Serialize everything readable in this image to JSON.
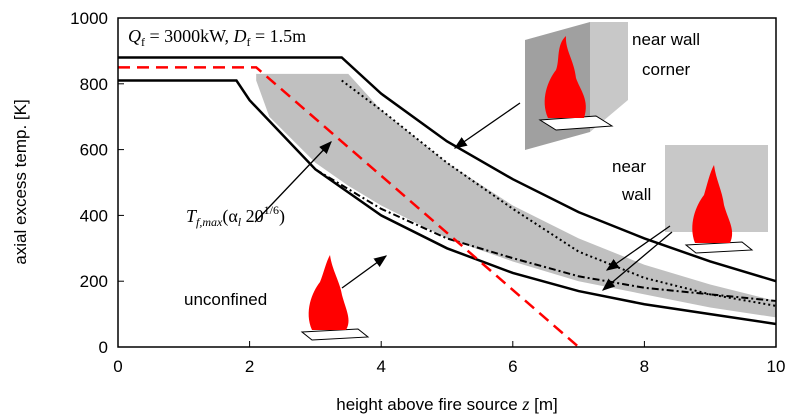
{
  "chart_data": {
    "type": "line",
    "x_label_parts": [
      "height above fire source ",
      "z",
      " [m]"
    ],
    "y_label": "axial excess temp. [K]",
    "xlim": [
      0,
      10
    ],
    "xticks": [
      0,
      2,
      4,
      6,
      8,
      10
    ],
    "ylim": [
      0,
      1000
    ],
    "yticks": [
      0,
      200,
      400,
      600,
      800,
      1000
    ],
    "band": {
      "color": "#c0c0c0",
      "x": [
        2.1,
        2.3,
        3,
        3.5,
        4,
        5,
        6,
        7,
        8,
        9,
        10
      ],
      "upper": [
        830,
        830,
        830,
        830,
        720,
        560,
        430,
        330,
        250,
        190,
        140
      ],
      "lower": [
        810,
        700,
        560,
        490,
        430,
        330,
        260,
        200,
        160,
        120,
        90
      ]
    },
    "series": [
      {
        "color": "#000000",
        "dash": "solid",
        "width": 2.5,
        "x": [
          0,
          3.4,
          4,
          5,
          6,
          7,
          8,
          9,
          10
        ],
        "values": [
          880,
          880,
          770,
          625,
          510,
          410,
          330,
          260,
          200
        ]
      },
      {
        "color": "#000000",
        "dash": "solid",
        "width": 2.5,
        "x": [
          0,
          1.8,
          2,
          3,
          4,
          5,
          6,
          7,
          8,
          9,
          10
        ],
        "values": [
          810,
          810,
          750,
          540,
          400,
          300,
          225,
          170,
          130,
          100,
          70
        ]
      },
      {
        "color": "#000000",
        "dash": "dot",
        "width": 2,
        "x": [
          3.4,
          4,
          5,
          6,
          7,
          8,
          9,
          10
        ],
        "values": [
          810,
          720,
          560,
          420,
          290,
          210,
          160,
          125
        ]
      },
      {
        "color": "#000000",
        "dash": "dashdot",
        "width": 2,
        "x": [
          3,
          4,
          5,
          6,
          7,
          8,
          9,
          10
        ],
        "values": [
          540,
          420,
          330,
          270,
          215,
          180,
          160,
          140
        ]
      },
      {
        "color": "#ff0000",
        "dash": "dash",
        "width": 2.5,
        "x": [
          0,
          2.1,
          7
        ],
        "values": [
          850,
          850,
          0
        ]
      }
    ],
    "annotations": {
      "source": [
        "Q",
        "f",
        " = 3000kW, ",
        "D",
        "f",
        " = 1.5m"
      ],
      "tmax": [
        "T",
        "f,max",
        "(α",
        "l",
        " 20",
        "1/6",
        ")"
      ],
      "corner": [
        "near wall",
        "corner"
      ],
      "wall": [
        "near",
        "wall"
      ],
      "unconfined": "unconfined"
    }
  }
}
